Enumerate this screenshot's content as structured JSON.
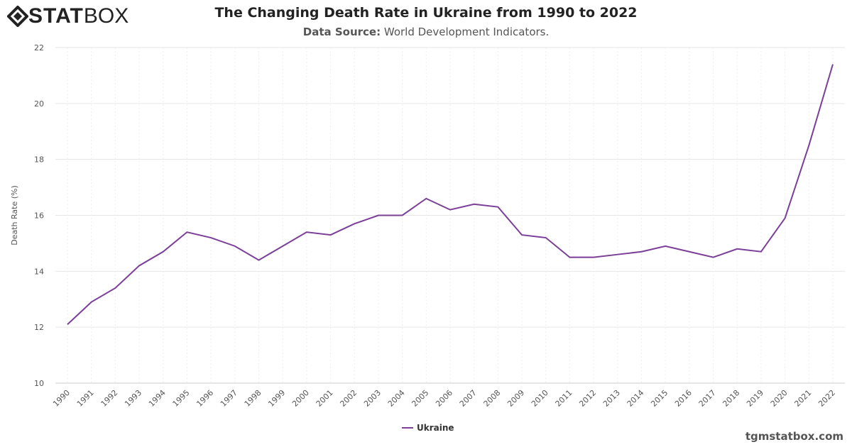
{
  "logo": {
    "text_bold": "STAT",
    "text_light": "BOX"
  },
  "header": {
    "title": "The Changing Death Rate in Ukraine from 1990 to 2022",
    "source_label": "Data Source:",
    "source_value": "World Development Indicators."
  },
  "watermark": "tgmstatbox.com",
  "colors": {
    "line": "#7b3f98",
    "grid": "#e6e6e6"
  },
  "chart_data": {
    "type": "line",
    "title": "The Changing Death Rate in Ukraine from 1990 to 2022",
    "xlabel": "",
    "ylabel": "Death Rate (%)",
    "ylim": [
      10,
      22
    ],
    "yticks": [
      10,
      12,
      14,
      16,
      18,
      20,
      22
    ],
    "grid": true,
    "legend": "bottom-center",
    "x": [
      1990,
      1991,
      1992,
      1993,
      1994,
      1995,
      1996,
      1997,
      1998,
      1999,
      2000,
      2001,
      2002,
      2003,
      2004,
      2005,
      2006,
      2007,
      2008,
      2009,
      2010,
      2011,
      2012,
      2013,
      2014,
      2015,
      2016,
      2017,
      2018,
      2019,
      2020,
      2021,
      2022
    ],
    "series": [
      {
        "name": "Ukraine",
        "values": [
          12.1,
          12.9,
          13.4,
          14.2,
          14.7,
          15.4,
          15.2,
          14.9,
          14.4,
          14.9,
          15.4,
          15.3,
          15.7,
          16.0,
          16.0,
          16.6,
          16.2,
          16.4,
          16.3,
          15.3,
          15.2,
          14.5,
          14.5,
          14.6,
          14.7,
          14.9,
          14.7,
          14.5,
          14.8,
          14.7,
          15.9,
          18.5,
          21.4
        ]
      }
    ]
  }
}
